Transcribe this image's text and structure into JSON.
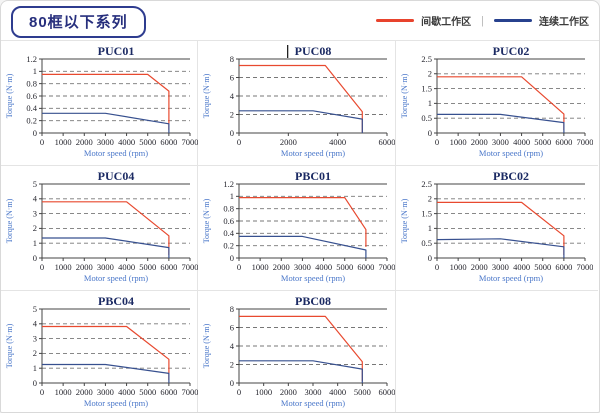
{
  "header": {
    "title": "80框以下系列",
    "legend": [
      {
        "label": "间歇工作区",
        "color": "#e8432d"
      },
      {
        "label": "连续工作区",
        "color": "#27418e"
      }
    ],
    "legend_divider": "|"
  },
  "colors": {
    "red_line": "#e8492f",
    "blue_line": "#37508f",
    "grid_line": "#777777",
    "axis_line": "#444444",
    "tick_label": "#26262e",
    "chart_title": "#1b2a63",
    "axis_label": "#4a77c9"
  },
  "chart_data": [
    {
      "type": "line",
      "title": "PUC01",
      "cursor_before_title": false,
      "xlabel": "Motor speed (rpm)",
      "ylabel": "Torque (N·m)",
      "xlim": [
        0,
        7000
      ],
      "xticks": [
        0,
        1000,
        2000,
        3000,
        4000,
        5000,
        6000,
        7000
      ],
      "ylim": [
        0,
        1.2
      ],
      "yticks": [
        0,
        0.2,
        0.4,
        0.6,
        0.8,
        1,
        1.2
      ],
      "grid": "dashed-horizontal",
      "legend_position": "none",
      "series": [
        {
          "name": "间歇工作区",
          "color": "red",
          "points": [
            [
              0,
              0.95
            ],
            [
              5000,
              0.95
            ],
            [
              6000,
              0.68
            ],
            [
              6000,
              0.05
            ]
          ]
        },
        {
          "name": "连续工作区",
          "color": "blue",
          "points": [
            [
              0,
              0.32
            ],
            [
              3000,
              0.32
            ],
            [
              6000,
              0.15
            ],
            [
              6000,
              0
            ]
          ]
        }
      ]
    },
    {
      "type": "line",
      "title": "PUC08",
      "cursor_before_title": true,
      "xlabel": "Motor speed (rpm)",
      "ylabel": "Torque (N·m)",
      "xlim": [
        0,
        6000
      ],
      "xticks": [
        0,
        2000,
        4000,
        6000
      ],
      "ylim": [
        0,
        8
      ],
      "yticks": [
        0,
        2,
        4,
        6,
        8
      ],
      "grid": "dashed-horizontal",
      "legend_position": "none",
      "series": [
        {
          "name": "间歇工作区",
          "color": "red",
          "points": [
            [
              0,
              7.3
            ],
            [
              3500,
              7.3
            ],
            [
              5000,
              2.3
            ],
            [
              5000,
              0.1
            ]
          ]
        },
        {
          "name": "连续工作区",
          "color": "blue",
          "points": [
            [
              0,
              2.4
            ],
            [
              3000,
              2.4
            ],
            [
              5000,
              1.5
            ],
            [
              5000,
              0
            ]
          ]
        }
      ]
    },
    {
      "type": "line",
      "title": "PUC02",
      "cursor_before_title": false,
      "xlabel": "Motor speed (rpm)",
      "ylabel": "Torque (N·m)",
      "xlim": [
        0,
        7000
      ],
      "xticks": [
        0,
        1000,
        2000,
        3000,
        4000,
        5000,
        6000,
        7000
      ],
      "ylim": [
        0,
        2.5
      ],
      "yticks": [
        0,
        0.5,
        1,
        1.5,
        2,
        2.5
      ],
      "grid": "dashed-horizontal",
      "legend_position": "none",
      "series": [
        {
          "name": "间歇工作区",
          "color": "red",
          "points": [
            [
              0,
              1.9
            ],
            [
              4000,
              1.9
            ],
            [
              6000,
              0.64
            ],
            [
              6000,
              0.1
            ]
          ]
        },
        {
          "name": "连续工作区",
          "color": "blue",
          "points": [
            [
              0,
              0.63
            ],
            [
              3000,
              0.63
            ],
            [
              6000,
              0.35
            ],
            [
              6000,
              0
            ]
          ]
        }
      ]
    },
    {
      "type": "line",
      "title": "PUC04",
      "cursor_before_title": false,
      "xlabel": "Motor speed (rpm)",
      "ylabel": "Torque (N·m)",
      "xlim": [
        0,
        7000
      ],
      "xticks": [
        0,
        1000,
        2000,
        3000,
        4000,
        5000,
        6000,
        7000
      ],
      "ylim": [
        0,
        5
      ],
      "yticks": [
        0,
        1,
        2,
        3,
        4,
        5
      ],
      "grid": "dashed-horizontal",
      "legend_position": "none",
      "series": [
        {
          "name": "间歇工作区",
          "color": "red",
          "points": [
            [
              0,
              3.8
            ],
            [
              4000,
              3.8
            ],
            [
              6000,
              1.5
            ],
            [
              6000,
              0.2
            ]
          ]
        },
        {
          "name": "连续工作区",
          "color": "blue",
          "points": [
            [
              0,
              1.35
            ],
            [
              3000,
              1.35
            ],
            [
              6000,
              0.7
            ],
            [
              6000,
              0
            ]
          ]
        }
      ]
    },
    {
      "type": "line",
      "title": "PBC01",
      "cursor_before_title": false,
      "xlabel": "Motor speed (rpm)",
      "ylabel": "Torque (N·m)",
      "xlim": [
        0,
        7000
      ],
      "xticks": [
        0,
        1000,
        2000,
        3000,
        4000,
        5000,
        6000,
        7000
      ],
      "ylim": [
        0,
        1.2
      ],
      "yticks": [
        0,
        0.2,
        0.4,
        0.6,
        0.8,
        1,
        1.2
      ],
      "grid": "dashed-horizontal",
      "legend_position": "none",
      "series": [
        {
          "name": "间歇工作区",
          "color": "red",
          "points": [
            [
              0,
              0.98
            ],
            [
              5000,
              0.98
            ],
            [
              6000,
              0.46
            ],
            [
              6000,
              0.18
            ]
          ]
        },
        {
          "name": "连续工作区",
          "color": "blue",
          "points": [
            [
              0,
              0.35
            ],
            [
              3000,
              0.35
            ],
            [
              6000,
              0.13
            ],
            [
              6000,
              0
            ]
          ]
        }
      ]
    },
    {
      "type": "line",
      "title": "PBC02",
      "cursor_before_title": false,
      "xlabel": "Motor speed (rpm)",
      "ylabel": "Torque (N·m)",
      "xlim": [
        0,
        7000
      ],
      "xticks": [
        0,
        1000,
        2000,
        3000,
        4000,
        5000,
        6000,
        7000
      ],
      "ylim": [
        0,
        2.5
      ],
      "yticks": [
        0,
        0.5,
        1,
        1.5,
        2,
        2.5
      ],
      "grid": "dashed-horizontal",
      "legend_position": "none",
      "series": [
        {
          "name": "间歇工作区",
          "color": "red",
          "points": [
            [
              0,
              1.88
            ],
            [
              4000,
              1.88
            ],
            [
              6000,
              0.75
            ],
            [
              6000,
              0.1
            ]
          ]
        },
        {
          "name": "连续工作区",
          "color": "blue",
          "points": [
            [
              0,
              0.62
            ],
            [
              3000,
              0.65
            ],
            [
              6000,
              0.38
            ],
            [
              6000,
              0
            ]
          ]
        }
      ]
    },
    {
      "type": "line",
      "title": "PBC04",
      "cursor_before_title": false,
      "xlabel": "Motor speed (rpm)",
      "ylabel": "Torque (N·m)",
      "xlim": [
        0,
        7000
      ],
      "xticks": [
        0,
        1000,
        2000,
        3000,
        4000,
        5000,
        6000,
        7000
      ],
      "ylim": [
        0,
        5
      ],
      "yticks": [
        0,
        1,
        2,
        3,
        4,
        5
      ],
      "grid": "dashed-horizontal",
      "legend_position": "none",
      "series": [
        {
          "name": "间歇工作区",
          "color": "red",
          "points": [
            [
              0,
              3.82
            ],
            [
              4000,
              3.82
            ],
            [
              6000,
              1.6
            ],
            [
              6000,
              0.2
            ]
          ]
        },
        {
          "name": "连续工作区",
          "color": "blue",
          "points": [
            [
              0,
              1.25
            ],
            [
              3000,
              1.25
            ],
            [
              6000,
              0.65
            ],
            [
              6000,
              0
            ]
          ]
        }
      ]
    },
    {
      "type": "line",
      "title": "PBC08",
      "cursor_before_title": false,
      "xlabel": "Motor speed (rpm)",
      "ylabel": "Torque (N·m)",
      "xlim": [
        0,
        6000
      ],
      "xticks": [
        0,
        1000,
        2000,
        3000,
        4000,
        5000,
        6000
      ],
      "ylim": [
        0,
        8
      ],
      "yticks": [
        0,
        2,
        4,
        6,
        8
      ],
      "grid": "dashed-horizontal",
      "legend_position": "none",
      "series": [
        {
          "name": "间歇工作区",
          "color": "red",
          "points": [
            [
              0,
              7.2
            ],
            [
              3500,
              7.2
            ],
            [
              5000,
              2.3
            ],
            [
              5000,
              0.2
            ]
          ]
        },
        {
          "name": "连续工作区",
          "color": "blue",
          "points": [
            [
              0,
              2.4
            ],
            [
              3000,
              2.4
            ],
            [
              5000,
              1.5
            ],
            [
              5000,
              0
            ]
          ]
        }
      ]
    }
  ]
}
